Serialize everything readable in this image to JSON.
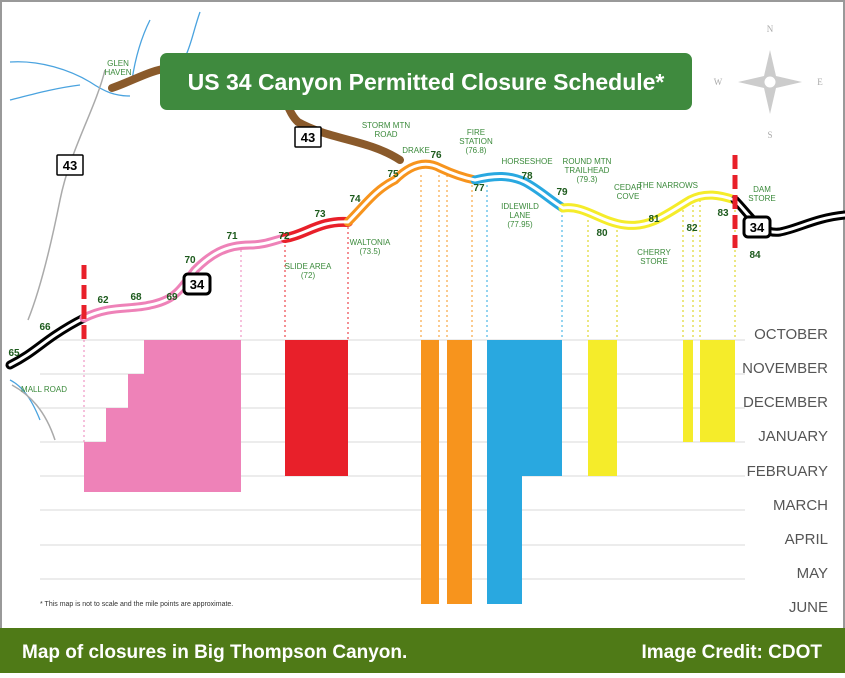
{
  "title": "US 34 Canyon Permitted Closure Schedule*",
  "compass": [
    "N",
    "E",
    "S",
    "W"
  ],
  "months": [
    "OCTOBER",
    "NOVEMBER",
    "DECEMBER",
    "JANUARY",
    "FEBRUARY",
    "MARCH",
    "APRIL",
    "MAY",
    "JUNE"
  ],
  "mile_markers": [
    "65",
    "66",
    "62",
    "68",
    "69",
    "70",
    "71",
    "72",
    "73",
    "74",
    "75",
    "76",
    "77",
    "78",
    "79",
    "80",
    "81",
    "82",
    "83",
    "84"
  ],
  "places": [
    {
      "lines": [
        "GLEN",
        "HAVEN"
      ]
    },
    {
      "lines": [
        "STORM MTN",
        "ROAD"
      ]
    },
    {
      "lines": [
        "DRAKE"
      ]
    },
    {
      "lines": [
        "FIRE",
        "STATION",
        "(76.8)"
      ]
    },
    {
      "lines": [
        "HORSESHOE"
      ]
    },
    {
      "lines": [
        "IDLEWILD",
        "LANE",
        "(77.95)"
      ]
    },
    {
      "lines": [
        "ROUND MTN",
        "TRAILHEAD",
        "(79.3)"
      ]
    },
    {
      "lines": [
        "CEDAR",
        "COVE"
      ]
    },
    {
      "lines": [
        "THE NARROWS"
      ]
    },
    {
      "lines": [
        "CHERRY",
        "STORE"
      ]
    },
    {
      "lines": [
        "DAM",
        "STORE"
      ]
    },
    {
      "lines": [
        "SLIDE AREA",
        "(72)"
      ]
    },
    {
      "lines": [
        "WALTONIA",
        "(73.5)"
      ]
    },
    {
      "lines": [
        "MALL ROAD"
      ]
    }
  ],
  "route_shields": [
    "43",
    "43",
    "34",
    "34"
  ],
  "footnote": "* This map is not to scale and the mile points are approximate.",
  "caption": "Map of closures in Big Thompson Canyon.",
  "credit": "Image Credit: CDOT"
}
